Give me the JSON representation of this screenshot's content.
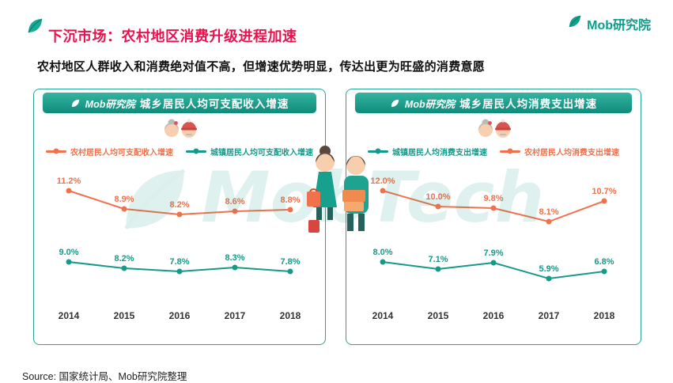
{
  "page": {
    "title": "下沉市场：农村地区消费升级进程加速",
    "subtitle": "农村地区人群收入和消费绝对值不高，但增速优势明显，传达出更为旺盛的消费意愿",
    "brand": "Mob研究院",
    "watermark": "MobTech",
    "source": "Source:  国家统计局、Mob研究院整理"
  },
  "colors": {
    "title_red": "#e8134e",
    "teal": "#159a8a",
    "orange": "#f0714c"
  },
  "icons": {
    "brand_leaf": "leaf-icon",
    "elderly_couple": "elderly-couple-icon",
    "shoppers": "shoppers-illustration"
  },
  "chart_data": [
    {
      "type": "line",
      "badge_brand": "Mob研究院",
      "title": "城乡居民人均可支配收入增速",
      "categories": [
        "2014",
        "2015",
        "2016",
        "2017",
        "2018"
      ],
      "unit": "%",
      "grid": false,
      "legend_position": "top",
      "series": [
        {
          "name": "农村居民人均可支配收入增速",
          "color": "#f0714c",
          "values": [
            11.2,
            8.9,
            8.2,
            8.6,
            8.8
          ]
        },
        {
          "name": "城镇居民人均可支配收入增速",
          "color": "#159a8a",
          "values": [
            9.0,
            8.2,
            7.8,
            8.3,
            7.8
          ]
        }
      ]
    },
    {
      "type": "line",
      "badge_brand": "Mob研究院",
      "title": "城乡居民人均消费支出增速",
      "categories": [
        "2014",
        "2015",
        "2016",
        "2017",
        "2018"
      ],
      "unit": "%",
      "grid": false,
      "legend_position": "top",
      "series": [
        {
          "name": "城镇居民人均消费支出增速",
          "color": "#159a8a",
          "values": [
            8.0,
            7.1,
            7.9,
            5.9,
            6.8
          ]
        },
        {
          "name": "农村居民人均消费支出增速",
          "color": "#f0714c",
          "values": [
            12.0,
            10.0,
            9.8,
            8.1,
            10.7
          ]
        }
      ]
    }
  ]
}
